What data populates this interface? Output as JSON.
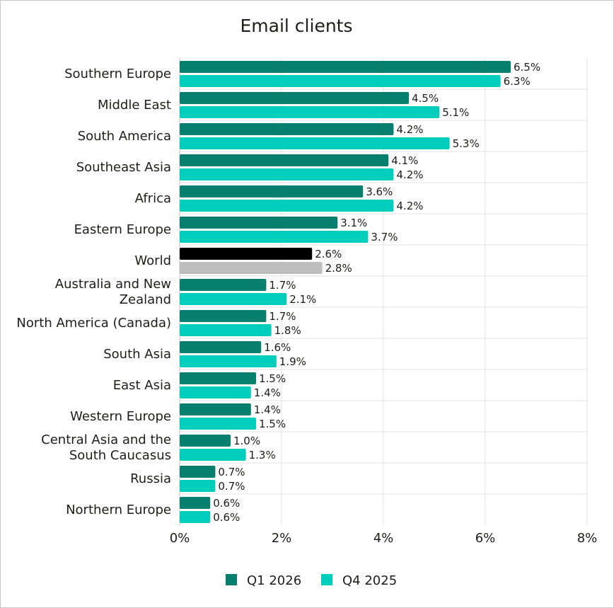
{
  "chart_data": {
    "type": "bar",
    "orientation": "horizontal",
    "title": "Email clients",
    "categories": [
      "Southern Europe",
      "Middle East",
      "South America",
      "Southeast Asia",
      "Africa",
      "Eastern Europe",
      "World",
      "Australia and New Zealand",
      "North America (Canada)",
      "South Asia",
      "East Asia",
      "Western Europe",
      "Central Asia and the South Caucasus",
      "Russia",
      "Northern Europe"
    ],
    "series": [
      {
        "name": "Q1 2026",
        "color": "#067f6f",
        "values": [
          6.5,
          4.5,
          4.2,
          4.1,
          3.6,
          3.1,
          2.6,
          1.7,
          1.7,
          1.6,
          1.5,
          1.4,
          1.0,
          0.7,
          0.6
        ],
        "labels": [
          "6.5%",
          "4.5%",
          "4.2%",
          "4.1%",
          "3.6%",
          "3.1%",
          "2.6%",
          "1.7%",
          "1.7%",
          "1.6%",
          "1.5%",
          "1.4%",
          "1.0%",
          "0.7%",
          "0.6%"
        ]
      },
      {
        "name": "Q4 2025",
        "color": "#00cebc",
        "values": [
          6.3,
          5.1,
          5.3,
          4.2,
          4.2,
          3.7,
          2.8,
          2.1,
          1.8,
          1.9,
          1.4,
          1.5,
          1.3,
          0.7,
          0.6
        ],
        "labels": [
          "6.3%",
          "5.1%",
          "5.3%",
          "4.2%",
          "4.2%",
          "3.7%",
          "2.8%",
          "2.1%",
          "1.8%",
          "1.9%",
          "1.4%",
          "1.5%",
          "1.3%",
          "0.7%",
          "0.6%"
        ]
      }
    ],
    "highlight": {
      "category": "World",
      "colors": [
        "#000000",
        "#bdbdbd"
      ]
    },
    "xlim": [
      0,
      8
    ],
    "xticks": [
      0,
      2,
      4,
      6,
      8
    ],
    "xtick_labels": [
      "0%",
      "2%",
      "4%",
      "6%",
      "8%"
    ],
    "grid": true,
    "legend_position": "bottom"
  }
}
